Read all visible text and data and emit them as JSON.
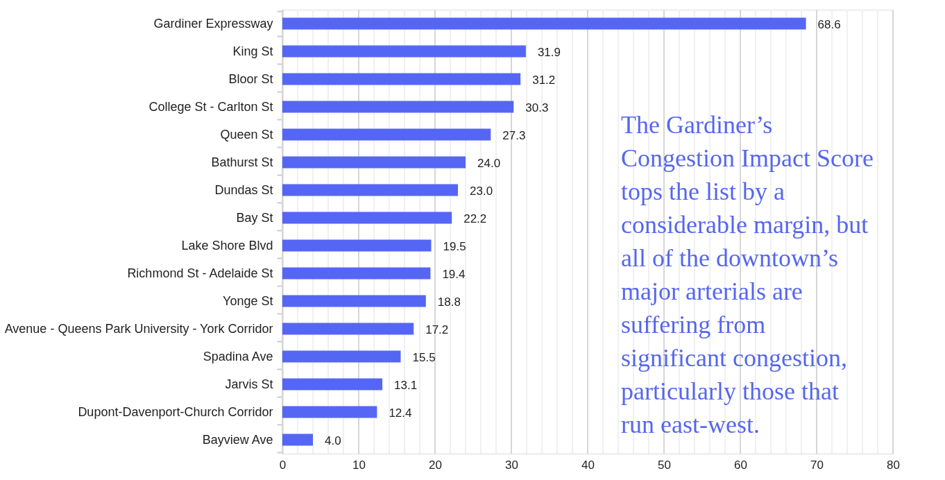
{
  "chart_data": {
    "type": "bar",
    "orientation": "horizontal",
    "categories": [
      "Gardiner Expressway",
      "King St",
      "Bloor St",
      "College St - Carlton St",
      "Queen St",
      "Bathurst St",
      "Dundas St",
      "Bay St",
      "Lake Shore Blvd",
      "Richmond St - Adelaide St",
      "Yonge St",
      "Avenue - Queens Park University - York Corridor",
      "Spadina Ave",
      "Jarvis St",
      "Dupont-Davenport-Church Corridor",
      "Bayview Ave"
    ],
    "values": [
      68.6,
      31.9,
      31.2,
      30.3,
      27.3,
      24.0,
      23.0,
      22.2,
      19.5,
      19.4,
      18.8,
      17.2,
      15.5,
      13.1,
      12.4,
      4.0
    ],
    "value_labels": [
      "68.6",
      "31.9",
      "31.2",
      "30.3",
      "27.3",
      "24.0",
      "23.0",
      "22.2",
      "19.5",
      "19.4",
      "18.8",
      "17.2",
      "15.5",
      "13.1",
      "12.4",
      "4.0"
    ],
    "color": "#5566f5",
    "xlim": [
      0,
      80
    ],
    "xticks": [
      0,
      {
        "value": 2,
        "label": null
      },
      {
        "value": 4,
        "label": null
      },
      {
        "value": 6,
        "label": null
      },
      {
        "value": 8,
        "label": null
      },
      10,
      {
        "value": 12,
        "label": null
      },
      {
        "value": 14,
        "label": null
      },
      {
        "value": 16,
        "label": null
      },
      {
        "value": 18,
        "label": null
      },
      20,
      {
        "value": 22,
        "label": null
      },
      {
        "value": 24,
        "label": null
      },
      {
        "value": 26,
        "label": null
      },
      {
        "value": 28,
        "label": null
      },
      30,
      {
        "value": 32,
        "label": null
      },
      {
        "value": 34,
        "label": null
      },
      {
        "value": 36,
        "label": null
      },
      {
        "value": 38,
        "label": null
      },
      40,
      {
        "value": 42,
        "label": null
      },
      {
        "value": 44,
        "label": null
      },
      {
        "value": 46,
        "label": null
      },
      {
        "value": 48,
        "label": null
      },
      50,
      {
        "value": 52,
        "label": null
      },
      {
        "value": 54,
        "label": null
      },
      {
        "value": 56,
        "label": null
      },
      {
        "value": 58,
        "label": null
      },
      60,
      {
        "value": 62,
        "label": null
      },
      {
        "value": 64,
        "label": null
      },
      {
        "value": 66,
        "label": null
      },
      {
        "value": 68,
        "label": null
      },
      70,
      {
        "value": 72,
        "label": null
      },
      {
        "value": 74,
        "label": null
      },
      {
        "value": 76,
        "label": null
      },
      {
        "value": 78,
        "label": null
      },
      80
    ],
    "grid": "x",
    "annotations": [
      "The Gardiner’s Congestion Impact Score tops the list by a considerable margin, but all of the downtown’s major arterials are suffering from significant congestion, particularly those that run east-west."
    ]
  }
}
